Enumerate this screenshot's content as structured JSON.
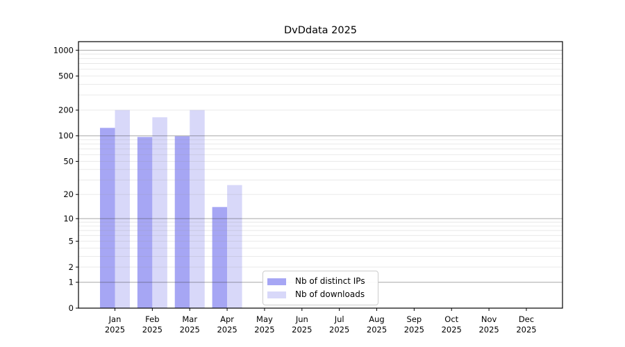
{
  "chart_data": {
    "type": "bar",
    "title": "DvDdata 2025",
    "xlabel": "",
    "ylabel": "",
    "categories": [
      "Jan 2025",
      "Feb 2025",
      "Mar 2025",
      "Apr 2025",
      "May 2025",
      "Jun 2025",
      "Jul 2025",
      "Aug 2025",
      "Sep 2025",
      "Oct 2025",
      "Nov 2025",
      "Dec 2025"
    ],
    "series": [
      {
        "name": "Nb of distinct IPs",
        "color": "#a6a6f4",
        "values": [
          124,
          97,
          99,
          14,
          null,
          null,
          null,
          null,
          null,
          null,
          null,
          null
        ]
      },
      {
        "name": "Nb of downloads",
        "color": "#d8d8f9",
        "values": [
          200,
          165,
          200,
          26,
          null,
          null,
          null,
          null,
          null,
          null,
          null,
          null
        ]
      }
    ],
    "y_scale": "log10(1+x)",
    "ylim": [
      0,
      1258
    ],
    "yticks": [
      0,
      1,
      2,
      5,
      10,
      20,
      50,
      100,
      200,
      500,
      1000
    ],
    "grid": {
      "major_at": [
        1,
        10,
        100,
        1000
      ],
      "minor": "multiples 2-9 of each decade",
      "major_color": "rgba(60,60,60,0.45)",
      "minor_color": "rgba(150,150,150,0.24)",
      "frame_color": "#000000"
    },
    "legend_position": "lower center"
  }
}
